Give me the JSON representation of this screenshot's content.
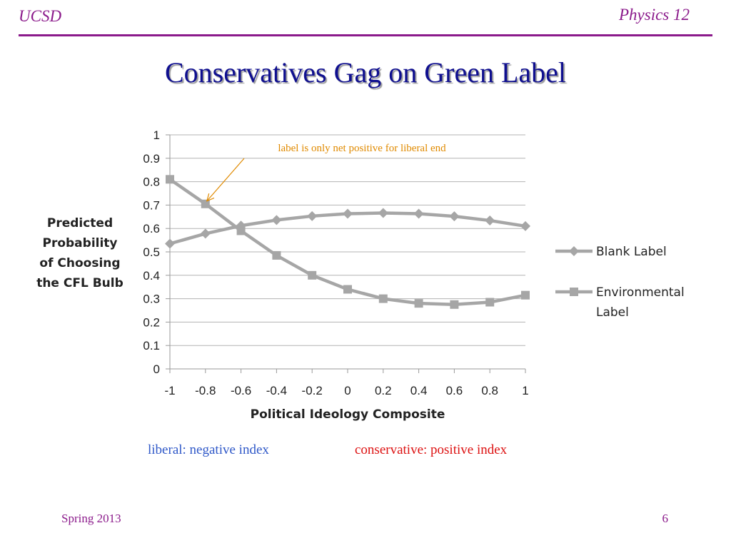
{
  "header": {
    "left": "UCSD",
    "right": "Physics 12"
  },
  "slide": {
    "title": "Conservatives Gag on Green Label"
  },
  "notes": {
    "liberal": "liberal: negative index",
    "conservative": "conservative: positive index"
  },
  "footer": {
    "left": "Spring 2013",
    "right": "6"
  },
  "colors": {
    "accent": "#8b1a8b",
    "title": "#0f0f8f",
    "series": "#a6a6a6",
    "annotation": "#e08a00"
  },
  "chart_data": {
    "type": "line",
    "xlabel": "Political Ideology Composite",
    "ylabel": [
      "Predicted",
      "Probability",
      "of Choosing",
      "the CFL Bulb"
    ],
    "x": [
      -1,
      -0.8,
      -0.6,
      -0.4,
      -0.2,
      0,
      0.2,
      0.4,
      0.6,
      0.8,
      1
    ],
    "x_ticks": [
      "-1",
      "-0.8",
      "-0.6",
      "-0.4",
      "-0.2",
      "0",
      "0.2",
      "0.4",
      "0.6",
      "0.8",
      "1"
    ],
    "y_ticks": [
      "0",
      "0.1",
      "0.2",
      "0.3",
      "0.4",
      "0.5",
      "0.6",
      "0.7",
      "0.8",
      "0.9",
      "1"
    ],
    "xlim": [
      -1,
      1
    ],
    "ylim": [
      0,
      1
    ],
    "grid": true,
    "legend_position": "right",
    "series": [
      {
        "name": [
          "Blank Label"
        ],
        "marker": "diamond",
        "values": [
          0.535,
          0.578,
          0.612,
          0.636,
          0.653,
          0.663,
          0.666,
          0.663,
          0.652,
          0.634,
          0.61
        ]
      },
      {
        "name": [
          "Environmental",
          "Label"
        ],
        "marker": "square",
        "values": [
          0.81,
          0.705,
          0.59,
          0.485,
          0.4,
          0.34,
          0.3,
          0.28,
          0.275,
          0.285,
          0.315
        ]
      }
    ],
    "annotation": {
      "text": "label is only net positive for liberal end",
      "x": -0.8,
      "y": 0.705
    }
  }
}
